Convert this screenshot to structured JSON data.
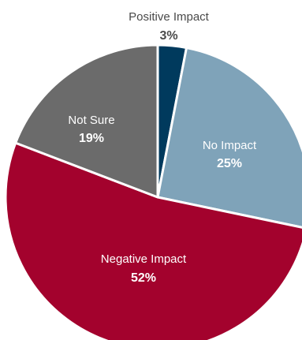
{
  "chart_data": {
    "type": "pie",
    "slices": [
      {
        "label": "Positive Impact",
        "display": "3%",
        "value": 3,
        "color": "#003a5d"
      },
      {
        "label": "No Impact",
        "display": "25%",
        "value": 25,
        "color": "#7fa3b9"
      },
      {
        "label": "Negative Impact",
        "display": "52%",
        "value": 52,
        "color": "#a3022d"
      },
      {
        "label": "Not Sure",
        "display": "19%",
        "value": 19,
        "color": "#6b6b6b"
      }
    ],
    "start_angle_deg": 0,
    "direction": "clockwise"
  }
}
